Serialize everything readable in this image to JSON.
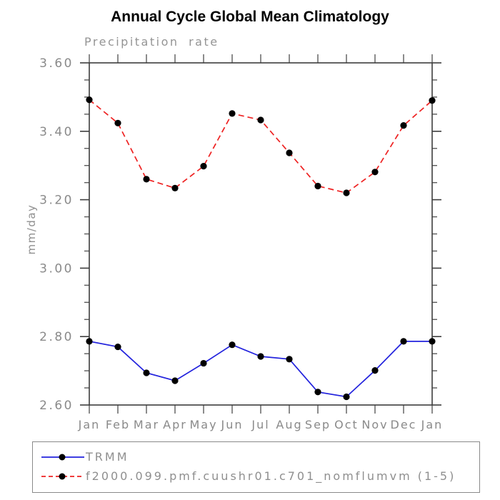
{
  "header": {
    "title": "Annual Cycle Global Mean Climatology",
    "subtitle": "Precipitation rate"
  },
  "chart_data": {
    "type": "line",
    "title": "Annual Cycle Global Mean Climatology",
    "subtitle": "Precipitation rate",
    "xlabel": "",
    "ylabel": "mm/day",
    "categories": [
      "Jan",
      "Feb",
      "Mar",
      "Apr",
      "May",
      "Jun",
      "Jul",
      "Aug",
      "Sep",
      "Oct",
      "Nov",
      "Dec",
      "Jan"
    ],
    "ylim": [
      2.6,
      3.6
    ],
    "ytick_labels": [
      "3.60",
      "3.40",
      "3.20",
      "3.00",
      "2.80",
      "2.60"
    ],
    "ytick_major_interval": 0.2,
    "ytick_minor_interval": 0.05,
    "grid": false,
    "legend_position": "bottom",
    "series": [
      {
        "name": "TRMM",
        "color": "#2222dd",
        "style": "solid",
        "marker": "circle",
        "marker_color": "#000000",
        "values": [
          2.786,
          2.77,
          2.694,
          2.671,
          2.722,
          2.776,
          2.742,
          2.734,
          2.638,
          2.624,
          2.701,
          2.786,
          2.786
        ]
      },
      {
        "name": "f2000.099.pmf.cuushr01.c701_nomflumvm (1-5)",
        "color": "#ee2222",
        "style": "dashed",
        "marker": "circle",
        "marker_color": "#000000",
        "values": [
          3.492,
          3.424,
          3.26,
          3.234,
          3.298,
          3.452,
          3.433,
          3.337,
          3.24,
          3.22,
          3.281,
          3.417,
          3.49
        ]
      }
    ]
  },
  "legend": {
    "entries": [
      {
        "label": "TRMM"
      },
      {
        "label": "f2000.099.pmf.cuushr01.c701_nomflumvm (1-5)"
      }
    ]
  },
  "colors": {
    "axis_frame": "#3d3d3d",
    "ticks": "#5a5a5a",
    "tick_text": "#8a8a8a",
    "title_text": "#000000",
    "subtitle_text": "#949494",
    "series_blue": "#2222dd",
    "series_red": "#ee2222",
    "marker": "#000000"
  }
}
